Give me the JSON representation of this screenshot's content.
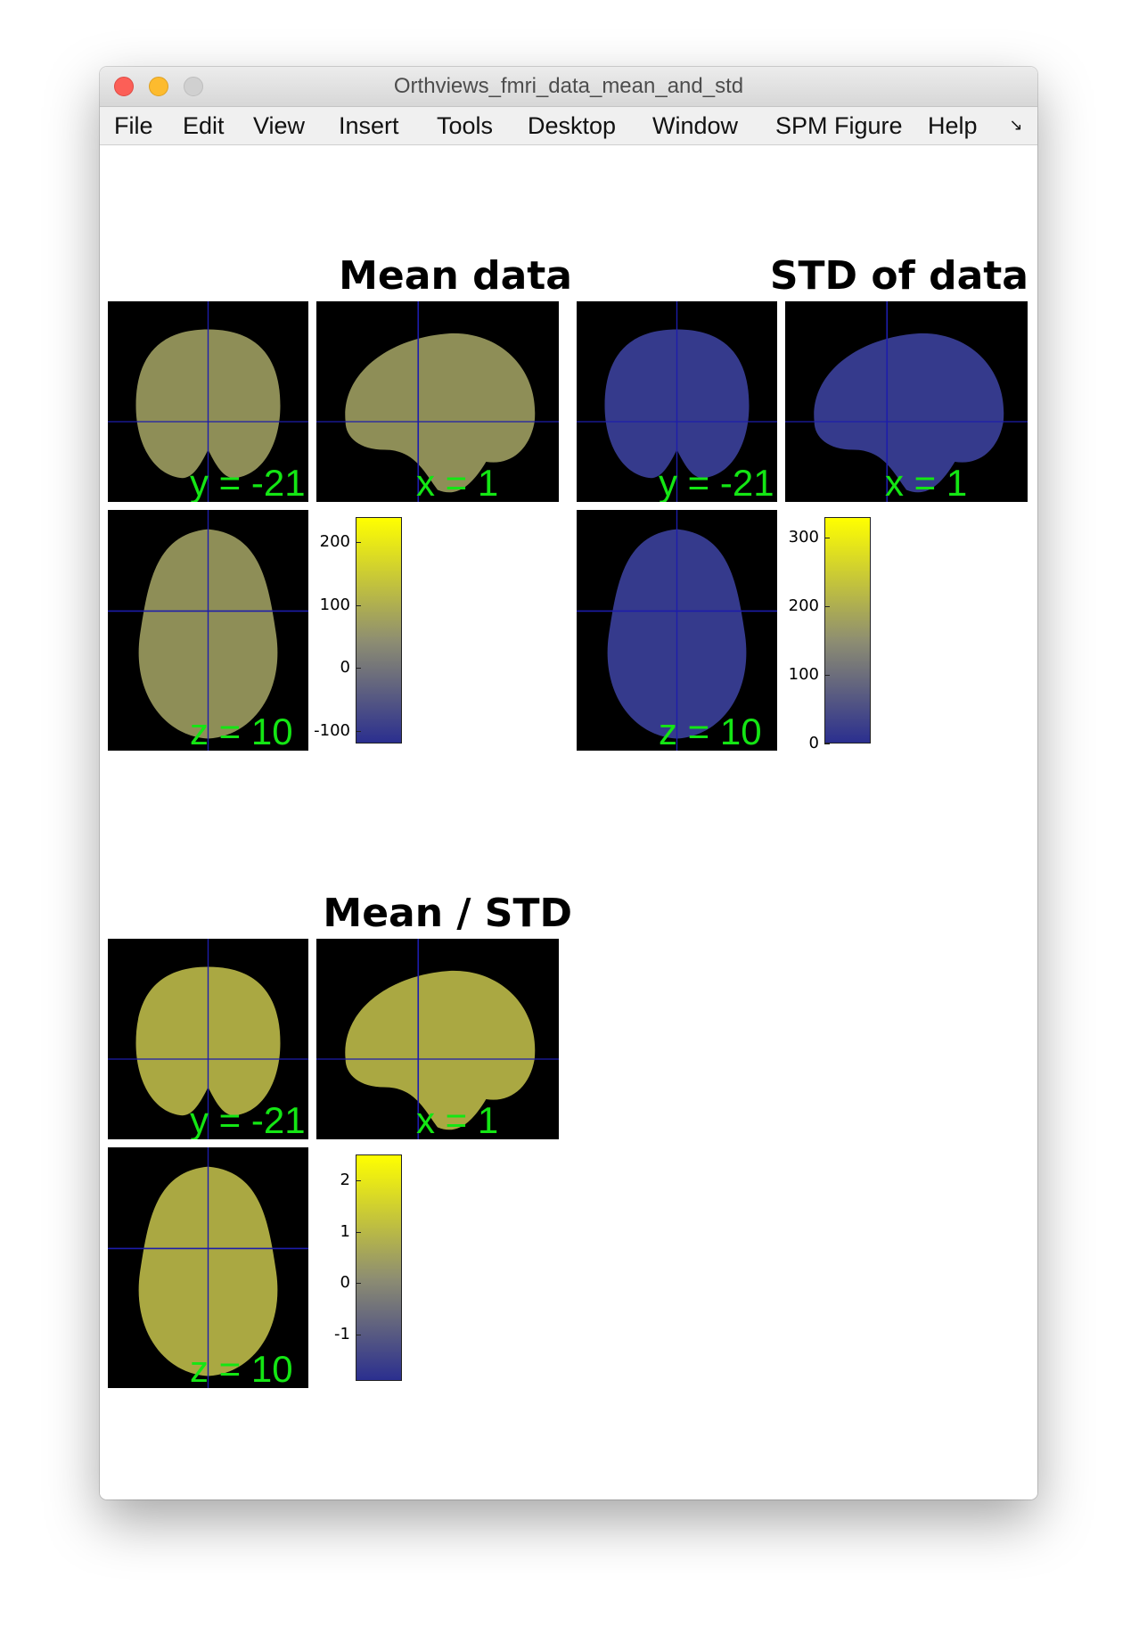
{
  "window": {
    "title": "Orthviews_fmri_data_mean_and_std"
  },
  "menu": {
    "items": [
      "File",
      "Edit",
      "View",
      "Insert",
      "Tools",
      "Desktop",
      "Window",
      "SPM Figure",
      "Help"
    ],
    "dock_icon": "dock-arrow-icon"
  },
  "panels": [
    {
      "title": "Mean data",
      "coronal_label": "y = -21",
      "sagittal_label": "x = 1",
      "axial_label": "z = 10",
      "colorbar": {
        "ticks": [
          "200",
          "100",
          "0",
          "-100"
        ],
        "min": -120,
        "max": 240
      },
      "tint": "#9a9a5e"
    },
    {
      "title": "STD of data",
      "coronal_label": "y = -21",
      "sagittal_label": "x = 1",
      "axial_label": "z = 10",
      "colorbar": {
        "ticks": [
          "300",
          "200",
          "100",
          "0"
        ],
        "min": 0,
        "max": 330
      },
      "tint": "#3a3f98"
    },
    {
      "title": "Mean / STD",
      "coronal_label": "y = -21",
      "sagittal_label": "x = 1",
      "axial_label": "z = 10",
      "colorbar": {
        "ticks": [
          "2",
          "1",
          "0",
          "-1"
        ],
        "min": -1.9,
        "max": 2.5
      },
      "tint": "#b8b648"
    }
  ],
  "colors": {
    "colormap_low": "#2b2f8f",
    "colormap_mid": "#8d8d72",
    "colormap_high": "#ffff00",
    "crosshair": "#1d1daa",
    "coord_label": "#14e614"
  }
}
